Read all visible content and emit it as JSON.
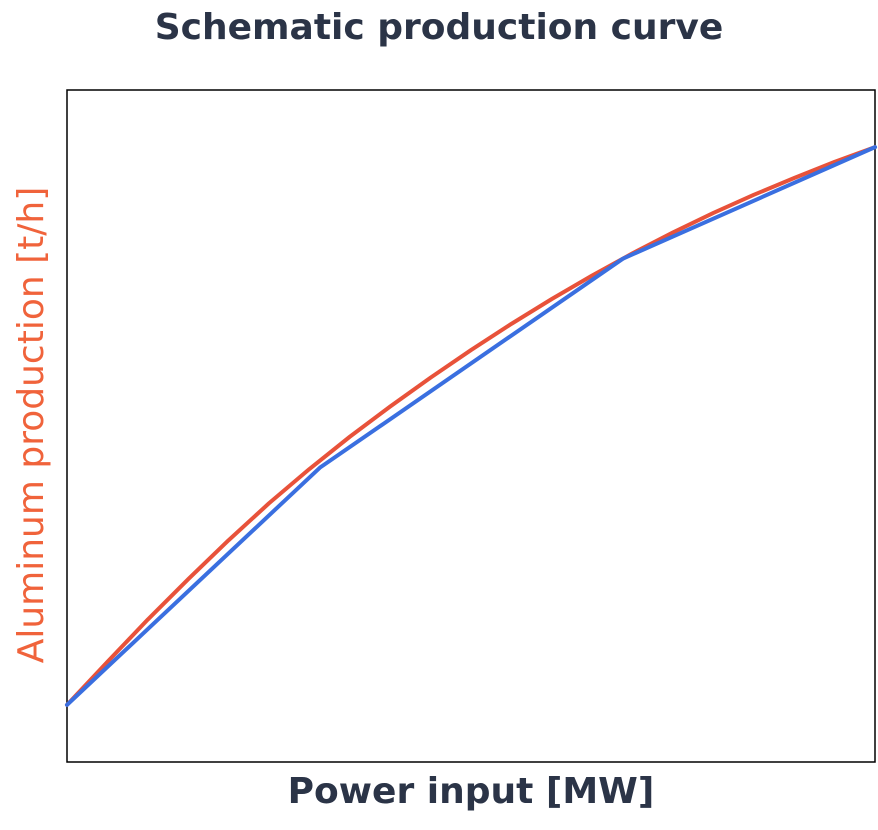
{
  "chart_data": {
    "type": "line",
    "title": "Schematic production curve",
    "xlabel": "Power input [MW]",
    "ylabel": "Aluminum production [t/h]",
    "xlim": [
      0,
      1
    ],
    "ylim": [
      0,
      1
    ],
    "grid": false,
    "legend": "none",
    "series": [
      {
        "color": "#e8523a",
        "style": "smooth curve",
        "x": [
          0,
          0.05,
          0.1,
          0.15,
          0.2,
          0.25,
          0.3,
          0.35,
          0.4,
          0.45,
          0.5,
          0.55,
          0.6,
          0.65,
          0.7,
          0.75,
          0.8,
          0.85,
          0.9,
          0.95,
          1.0
        ],
        "y": [
          0.085,
          0.149,
          0.212,
          0.272,
          0.33,
          0.385,
          0.436,
          0.484,
          0.529,
          0.572,
          0.613,
          0.652,
          0.689,
          0.724,
          0.757,
          0.788,
          0.817,
          0.844,
          0.869,
          0.893,
          0.915
        ]
      },
      {
        "color": "#3a6fe0",
        "style": "piecewise linear",
        "x": [
          0,
          0.313,
          0.688,
          1.0
        ],
        "y": [
          0.085,
          0.438,
          0.749,
          0.915
        ]
      }
    ]
  }
}
